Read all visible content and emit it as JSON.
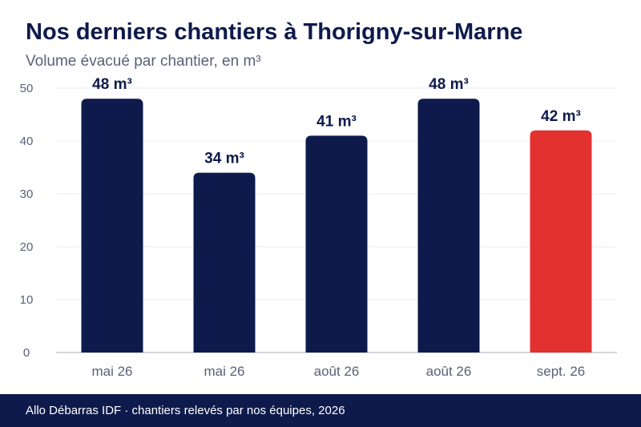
{
  "header": {
    "title": "Nos derniers chantiers à Thorigny-sur-Marne",
    "subtitle": "Volume évacué par chantier, en m³"
  },
  "footer": {
    "text": "Allo Débarras IDF · chantiers relevés par nos équipes, 2026"
  },
  "colors": {
    "bar_default": "#0e1a4b",
    "bar_highlight": "#e3312f",
    "axis_text": "#5a6178",
    "grid": "#ebebeb",
    "label": "#0e1a4b"
  },
  "chart_data": {
    "type": "bar",
    "categories": [
      "mai 26",
      "mai 26",
      "août 26",
      "août 26",
      "sept. 26"
    ],
    "values": [
      48,
      34,
      41,
      48,
      42
    ],
    "value_labels": [
      "48 m³",
      "34 m³",
      "41 m³",
      "48 m³",
      "42 m³"
    ],
    "highlight_index": 4,
    "ylim": [
      0,
      50
    ],
    "yticks": [
      0,
      10,
      20,
      30,
      40,
      50
    ],
    "grid": true,
    "legend": "none"
  }
}
